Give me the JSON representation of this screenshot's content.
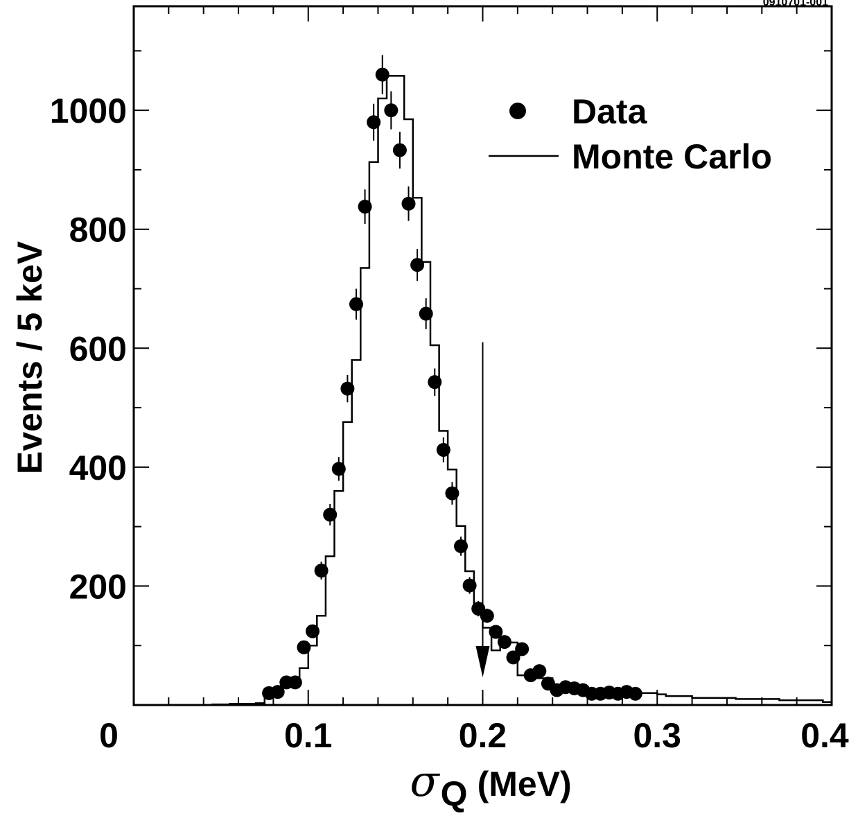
{
  "chart_data": {
    "type": "scatter",
    "corner_label": "0910701-001",
    "xlabel_symbol": "σ",
    "xlabel_sub": "Q",
    "xlabel_unit": "(MeV)",
    "ylabel": "Events / 5 keV",
    "xlim": [
      0,
      0.4
    ],
    "ylim": [
      0,
      1175
    ],
    "x_ticks": [
      {
        "value": 0,
        "label": "0"
      },
      {
        "value": 0.1,
        "label": "0.1"
      },
      {
        "value": 0.2,
        "label": "0.2"
      },
      {
        "value": 0.3,
        "label": "0.3"
      },
      {
        "value": 0.4,
        "label": "0.4"
      }
    ],
    "y_ticks": [
      {
        "value": 200,
        "label": "200"
      },
      {
        "value": 400,
        "label": "400"
      },
      {
        "value": 600,
        "label": "600"
      },
      {
        "value": 800,
        "label": "800"
      },
      {
        "value": 1000,
        "label": "1000"
      }
    ],
    "x_minor_step": 0.02,
    "y_minor_step": 100,
    "grid": false,
    "legend_position": "top-right",
    "legend": {
      "data": "Data",
      "mc": "Monte Carlo"
    },
    "cut": {
      "x": 0.2,
      "y_top": 610
    },
    "series": [
      {
        "name": "Data",
        "style": "points-with-error-bars",
        "x": [
          0.0775,
          0.0825,
          0.0875,
          0.0925,
          0.0975,
          0.1025,
          0.1075,
          0.1125,
          0.1175,
          0.1225,
          0.1275,
          0.1325,
          0.1375,
          0.1425,
          0.1475,
          0.1525,
          0.1575,
          0.1625,
          0.1675,
          0.1725,
          0.1775,
          0.1825,
          0.1875,
          0.1925,
          0.1975,
          0.2025,
          0.2075,
          0.2125,
          0.2175,
          0.2225,
          0.2275,
          0.2325,
          0.2375,
          0.2425,
          0.2475,
          0.2525,
          0.2575,
          0.2625,
          0.2675,
          0.2725,
          0.2775,
          0.2825,
          0.2875
        ],
        "y": [
          20,
          22,
          38,
          38,
          97,
          124,
          226,
          320,
          397,
          532,
          674,
          838,
          980,
          1060,
          1000,
          933,
          843,
          740,
          658,
          543,
          429,
          356,
          267,
          201,
          162,
          150,
          123,
          106,
          80,
          94,
          50,
          57,
          36,
          25,
          30,
          28,
          25,
          19,
          19,
          21,
          19,
          22,
          19
        ],
        "yerr": [
          5,
          5,
          6,
          6,
          10,
          11,
          15,
          18,
          20,
          23,
          26,
          29,
          31,
          33,
          32,
          31,
          29,
          27,
          26,
          23,
          21,
          19,
          16,
          14,
          13,
          12,
          11,
          10,
          9,
          10,
          7,
          8,
          6,
          5,
          6,
          5,
          5,
          4,
          4,
          5,
          4,
          5,
          4
        ]
      },
      {
        "name": "Monte Carlo",
        "style": "step-histogram",
        "bin_width": 0.005,
        "bin_start": 0.035,
        "values": [
          0,
          0,
          1,
          1,
          2,
          2,
          2,
          3,
          16,
          25,
          30,
          42,
          62,
          100,
          150,
          250,
          360,
          476,
          580,
          735,
          913,
          1020,
          1058,
          1058,
          985,
          853,
          745,
          605,
          461,
          396,
          301,
          225,
          158,
          130,
          92,
          100,
          105,
          50,
          50,
          45,
          45,
          30,
          25,
          22,
          20,
          20,
          22,
          20,
          18,
          20,
          18,
          20,
          20,
          18,
          15,
          15,
          15,
          12,
          12,
          12,
          12,
          12,
          10,
          10,
          10,
          10,
          10,
          8,
          8,
          8,
          8,
          8,
          5
        ]
      }
    ]
  }
}
